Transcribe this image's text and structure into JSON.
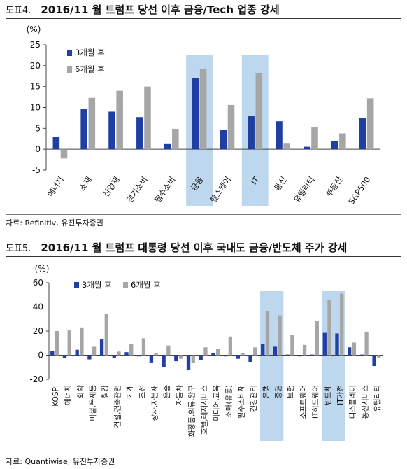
{
  "figures": [
    {
      "number": "도표4.",
      "title": "2016/11 월 트럼프 당선 이후 금융/Tech 업종 강세",
      "source": "자료: Refinitiv, 유진투자증권",
      "unit": "(%)",
      "colors": {
        "series1": "#1f3fa3",
        "series2": "#a6a6a6",
        "highlight": "#bdd7ee"
      },
      "chart_data": {
        "type": "bar",
        "categories": [
          "에너지",
          "소재",
          "산업재",
          "경기소비",
          "필수소비",
          "금융",
          "헬스케어",
          "IT",
          "통신",
          "유틸리티",
          "부동산",
          "S&P500"
        ],
        "series": [
          {
            "name": "3개월 후",
            "values": [
              3.0,
              9.6,
              9.0,
              7.7,
              1.4,
              17.0,
              4.6,
              7.9,
              6.7,
              0.6,
              2.0,
              7.4
            ]
          },
          {
            "name": "6개월 후",
            "values": [
              -2.2,
              12.3,
              14.0,
              15.0,
              4.9,
              19.2,
              10.6,
              18.3,
              1.5,
              5.3,
              3.8,
              12.2
            ]
          }
        ],
        "ylim": [
          -5,
          25
        ],
        "yticks": [
          -5,
          0,
          5,
          10,
          15,
          20,
          25
        ],
        "highlight_categories": [
          "금융",
          "IT"
        ],
        "legend_position": "top-left",
        "grid": false
      }
    },
    {
      "number": "도표5.",
      "title": "2016/11 월 트럼프 대통령 당선 이후 국내도 금융/반도체 주가 강세",
      "source": "자료: Quantiwise, 유진투자증권",
      "unit": "(%)",
      "colors": {
        "series1": "#1f3fa3",
        "series2": "#a6a6a6",
        "highlight": "#bdd7ee"
      },
      "chart_data": {
        "type": "bar",
        "categories": [
          "KOSPI",
          "에너지",
          "화학",
          "비철,목재등",
          "철강",
          "건설,건축관련",
          "기계",
          "조선",
          "상사,자본재",
          "운송",
          "자동차",
          "화장품,의류,완구",
          "호텔,레저서비스",
          "미디어,교육",
          "소매(유통)",
          "필수소비재",
          "건강관리",
          "은행",
          "증권",
          "보험",
          "소프트웨어",
          "IT하드웨어",
          "반도체",
          "IT가전",
          "디스플레이",
          "통신서비스",
          "유틸리티"
        ],
        "series": [
          {
            "name": "3개월 후",
            "values": [
              3.5,
              -2.5,
              4.5,
              -3.5,
              13.0,
              -2.0,
              2.5,
              -1.0,
              -6.0,
              -10.0,
              -5.0,
              -12.0,
              -4.0,
              1.5,
              -1.0,
              -3.0,
              -5.5,
              9.0,
              7.0,
              0.5,
              -1.0,
              0.5,
              18.5,
              18.0,
              6.5,
              0.5,
              -9.0
            ]
          },
          {
            "name": "6개월 후",
            "values": [
              20.0,
              20.5,
              23.0,
              7.0,
              34.5,
              3.0,
              9.0,
              14.0,
              2.0,
              8.0,
              -3.0,
              -6.5,
              6.5,
              5.0,
              15.5,
              1.5,
              6.5,
              36.5,
              33.0,
              17.0,
              8.5,
              28.5,
              46.0,
              51.0,
              10.5,
              19.5,
              -2.0
            ]
          }
        ],
        "ylim": [
          -20,
          60
        ],
        "yticks": [
          -20,
          0,
          20,
          40,
          60
        ],
        "highlight_categories": [
          "은행",
          "증권",
          "반도체",
          "IT가전"
        ],
        "legend_position": "top",
        "grid": false
      }
    }
  ]
}
